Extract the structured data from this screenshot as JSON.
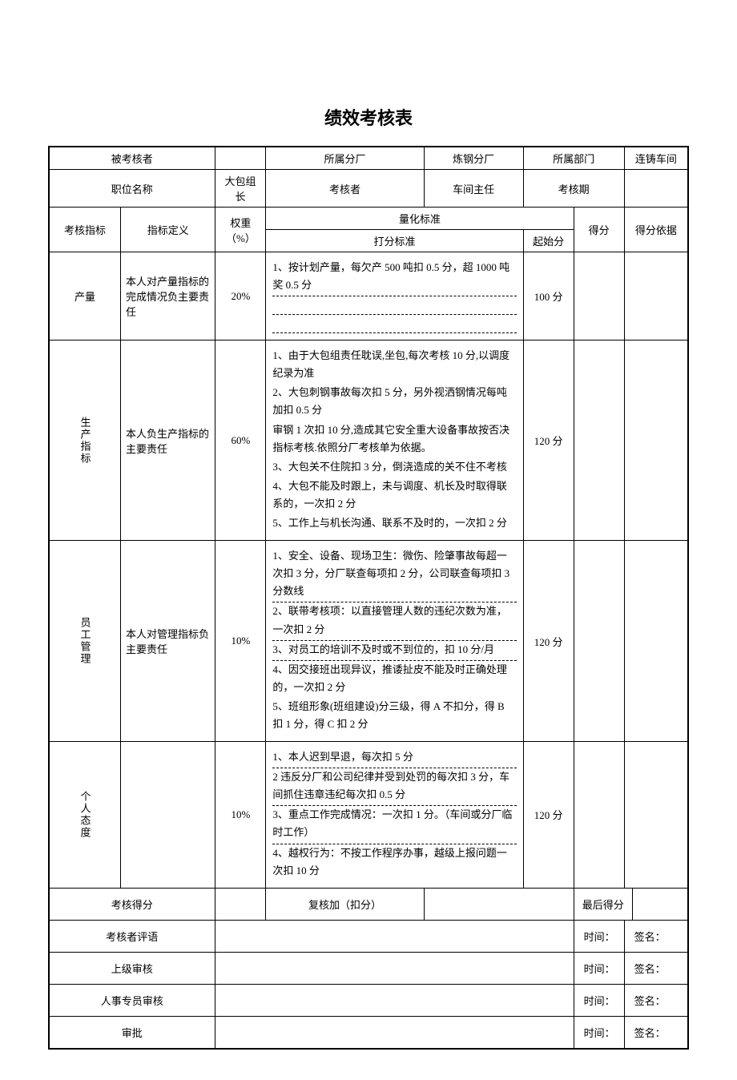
{
  "title": "绩效考核表",
  "header_row1": {
    "c1": "被考核者",
    "c3": "所属分厂",
    "c4": "炼钢分厂",
    "c5": "所属部门",
    "c7": "连铸车间"
  },
  "header_row2": {
    "c1": "职位名称",
    "c2": "大包组长",
    "c3": "考核者",
    "c4": "车间主任",
    "c5": "考核期"
  },
  "criteria_header": {
    "item": "考核指标",
    "def": "指标定义",
    "weight": "权重（%）",
    "std_top": "量化标准",
    "std_bottom": "打分标准",
    "start": "起始分",
    "score": "得分",
    "basis": "得分依据"
  },
  "rows": [
    {
      "name": "产量",
      "def": "本人对产量指标的完成情况负主要责任",
      "weight": "20%",
      "start": "100 分",
      "lines": [
        "1、按计划产量，每欠产 500 吨扣 0.5 分，超 1000 吨奖 0.5 分"
      ],
      "extra_dotted": 2
    },
    {
      "name": "生产指标",
      "def": "本人负生产指标的主要责任",
      "weight": "60%",
      "start": "120 分",
      "lines": [
        "1、由于大包组责任耽误,坐包,每次考核 10 分,以调度纪录为准",
        "2、大包刺钢事故每次扣 5 分，另外视洒钢情况每吨加扣 0.5 分",
        "审钢 1 次扣 10 分,造成其它安全重大设备事故按否决指标考核.依照分厂考核单为依据。",
        "3、大包关不住院扣 3 分，倒浇造成的关不住不考核",
        "4、大包不能及时跟上，未与调度、机长及时取得联系的，一次扣 2 分",
        "5、工作上与机长沟通、联系不及时的，一次扣 2 分"
      ],
      "extra_dotted": 0
    },
    {
      "name": "员工管理",
      "def": "本人对管理指标负主要责任",
      "weight": "10%",
      "start": "120 分",
      "lines": [
        "1、安全、设备、现场卫生：微伤、险肇事故每超一次扣 3 分，分厂联查每项扣 2 分，公司联查每项扣 3 分数线",
        "2、联带考核项：以直接管理人数的违纪次数为准，一次扣 2 分",
        "3、对员工的培训不及时或不到位的，扣 10 分/月",
        "4、因交接班出现异议，推诿扯皮不能及时正确处理的，一次扣 2 分",
        "5、班组形象(班组建设)分三级，得 A 不扣分，得 B 扣 1 分，得 C 扣 2 分"
      ],
      "extra_dotted": 0
    },
    {
      "name": "个人态度",
      "def": "",
      "weight": "10%",
      "start": "120 分",
      "lines": [
        "1、本人迟到早退，每次扣 5 分",
        "2 违反分厂和公司纪律并受到处罚的每次扣 3 分，车间抓住违章违纪每次扣 0.5 分",
        "3、重点工作完成情况：一次扣 1 分。（车间或分厂临时工作）",
        "4、越权行为：不按工作程序办事，越级上报问题一次扣 10 分"
      ],
      "extra_dotted": 0
    }
  ],
  "footer": {
    "score_label": "考核得分",
    "recheck_label": "复核加（扣分）",
    "final_label": "最后得分",
    "comment": "考核者评语",
    "superior": "上级审核",
    "hr": "人事专员审核",
    "approve": "审批",
    "time": "时间：",
    "sign": "签名："
  }
}
